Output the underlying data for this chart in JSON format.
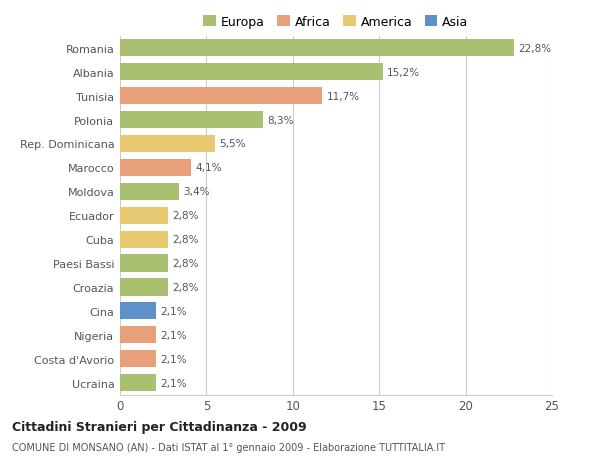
{
  "countries": [
    "Romania",
    "Albania",
    "Tunisia",
    "Polonia",
    "Rep. Dominicana",
    "Marocco",
    "Moldova",
    "Ecuador",
    "Cuba",
    "Paesi Bassi",
    "Croazia",
    "Cina",
    "Nigeria",
    "Costa d'Avorio",
    "Ucraina"
  ],
  "values": [
    22.8,
    15.2,
    11.7,
    8.3,
    5.5,
    4.1,
    3.4,
    2.8,
    2.8,
    2.8,
    2.8,
    2.1,
    2.1,
    2.1,
    2.1
  ],
  "labels": [
    "22,8%",
    "15,2%",
    "11,7%",
    "8,3%",
    "5,5%",
    "4,1%",
    "3,4%",
    "2,8%",
    "2,8%",
    "2,8%",
    "2,8%",
    "2,1%",
    "2,1%",
    "2,1%",
    "2,1%"
  ],
  "colors": [
    "#a8c070",
    "#a8c070",
    "#e8a07a",
    "#a8c070",
    "#e8c870",
    "#e8a07a",
    "#a8c070",
    "#e8c870",
    "#e8c870",
    "#a8c070",
    "#a8c070",
    "#6090c8",
    "#e8a07a",
    "#e8a07a",
    "#a8c070"
  ],
  "legend_labels": [
    "Europa",
    "Africa",
    "America",
    "Asia"
  ],
  "legend_colors": [
    "#a8c070",
    "#e8a07a",
    "#e8c870",
    "#6090c8"
  ],
  "title1": "Cittadini Stranieri per Cittadinanza - 2009",
  "title2": "COMUNE DI MONSANO (AN) - Dati ISTAT al 1° gennaio 2009 - Elaborazione TUTTITALIA.IT",
  "xlim": [
    0,
    25
  ],
  "xticks": [
    0,
    5,
    10,
    15,
    20,
    25
  ],
  "background_color": "#ffffff",
  "grid_color": "#cccccc"
}
